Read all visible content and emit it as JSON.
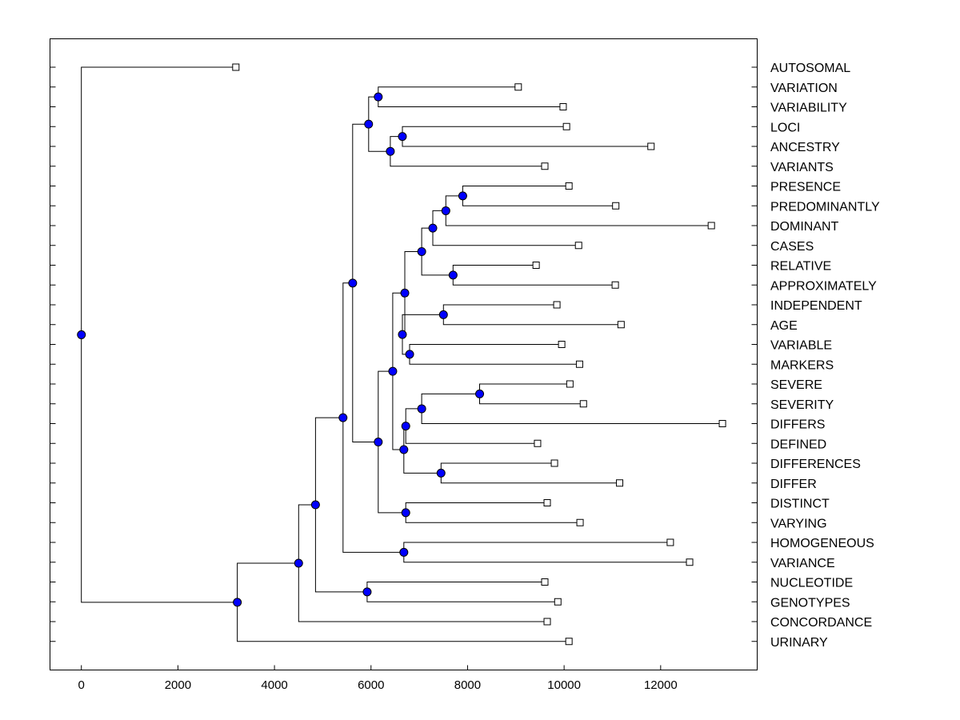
{
  "chart_data": {
    "type": "dendrogram",
    "title": "",
    "xlabel": "",
    "ylabel": "",
    "xlim": [
      -650,
      14000
    ],
    "xticks": [
      0,
      2000,
      4000,
      6000,
      8000,
      10000,
      12000
    ],
    "xtick_labels": [
      "0",
      "2000",
      "4000",
      "6000",
      "8000",
      "10000",
      "12000"
    ],
    "leaves": [
      {
        "name": "AUTOSOMAL",
        "value": 3200
      },
      {
        "name": "VARIATION",
        "value": 9050
      },
      {
        "name": "VARIABILITY",
        "value": 9980
      },
      {
        "name": "LOCI",
        "value": 10050
      },
      {
        "name": "ANCESTRY",
        "value": 11800
      },
      {
        "name": "VARIANTS",
        "value": 9600
      },
      {
        "name": "PRESENCE",
        "value": 10100
      },
      {
        "name": "PREDOMINANTLY",
        "value": 11070
      },
      {
        "name": "DOMINANT",
        "value": 13050
      },
      {
        "name": "CASES",
        "value": 10300
      },
      {
        "name": "RELATIVE",
        "value": 9420
      },
      {
        "name": "APPROXIMATELY",
        "value": 11060
      },
      {
        "name": "INDEPENDENT",
        "value": 9850
      },
      {
        "name": "AGE",
        "value": 11180
      },
      {
        "name": "VARIABLE",
        "value": 9950
      },
      {
        "name": "MARKERS",
        "value": 10320
      },
      {
        "name": "SEVERE",
        "value": 10120
      },
      {
        "name": "SEVERITY",
        "value": 10400
      },
      {
        "name": "DIFFERS",
        "value": 13280
      },
      {
        "name": "DEFINED",
        "value": 9450
      },
      {
        "name": "DIFFERENCES",
        "value": 9800
      },
      {
        "name": "DIFFER",
        "value": 11150
      },
      {
        "name": "DISTINCT",
        "value": 9650
      },
      {
        "name": "VARYING",
        "value": 10330
      },
      {
        "name": "HOMOGENEOUS",
        "value": 12200
      },
      {
        "name": "VARIANCE",
        "value": 12600
      },
      {
        "name": "NUCLEOTIDE",
        "value": 9600
      },
      {
        "name": "GENOTYPES",
        "value": 9870
      },
      {
        "name": "CONCORDANCE",
        "value": 9650
      },
      {
        "name": "URINARY",
        "value": 10100
      }
    ],
    "merges": [
      {
        "id": "m1",
        "value": 6150,
        "children": [
          "VARIATION",
          "VARIABILITY"
        ]
      },
      {
        "id": "m2",
        "value": 6650,
        "children": [
          "LOCI",
          "ANCESTRY"
        ]
      },
      {
        "id": "m3",
        "value": 6400,
        "children": [
          "m2",
          "VARIANTS"
        ]
      },
      {
        "id": "m4",
        "value": 5950,
        "children": [
          "m1",
          "m3"
        ]
      },
      {
        "id": "m5",
        "value": 7900,
        "children": [
          "PRESENCE",
          "PREDOMINANTLY"
        ]
      },
      {
        "id": "m6",
        "value": 7550,
        "children": [
          "m5",
          "DOMINANT"
        ]
      },
      {
        "id": "m7",
        "value": 7280,
        "children": [
          "m6",
          "CASES"
        ]
      },
      {
        "id": "m8",
        "value": 7700,
        "children": [
          "RELATIVE",
          "APPROXIMATELY"
        ]
      },
      {
        "id": "m9",
        "value": 7050,
        "children": [
          "m7",
          "m8"
        ]
      },
      {
        "id": "m10",
        "value": 7500,
        "children": [
          "INDEPENDENT",
          "AGE"
        ]
      },
      {
        "id": "m11",
        "value": 6800,
        "children": [
          "VARIABLE",
          "MARKERS"
        ]
      },
      {
        "id": "m12",
        "value": 6650,
        "children": [
          "m10",
          "m11"
        ]
      },
      {
        "id": "m13",
        "value": 6700,
        "children": [
          "m9",
          "m12"
        ]
      },
      {
        "id": "m14",
        "value": 8250,
        "children": [
          "SEVERE",
          "SEVERITY"
        ]
      },
      {
        "id": "m15",
        "value": 7050,
        "children": [
          "m14",
          "DIFFERS"
        ]
      },
      {
        "id": "m16",
        "value": 6720,
        "children": [
          "m15",
          "DEFINED"
        ]
      },
      {
        "id": "m17",
        "value": 7450,
        "children": [
          "DIFFERENCES",
          "DIFFER"
        ]
      },
      {
        "id": "m18",
        "value": 6680,
        "children": [
          "m16",
          "m17"
        ]
      },
      {
        "id": "m19",
        "value": 6450,
        "children": [
          "m13",
          "m18"
        ]
      },
      {
        "id": "m20",
        "value": 6720,
        "children": [
          "DISTINCT",
          "VARYING"
        ]
      },
      {
        "id": "m21",
        "value": 6150,
        "children": [
          "m19",
          "m20"
        ]
      },
      {
        "id": "m22",
        "value": 5620,
        "children": [
          "m4",
          "m21"
        ]
      },
      {
        "id": "m23",
        "value": 6680,
        "children": [
          "HOMOGENEOUS",
          "VARIANCE"
        ]
      },
      {
        "id": "m24",
        "value": 5420,
        "children": [
          "m22",
          "m23"
        ]
      },
      {
        "id": "m25",
        "value": 5920,
        "children": [
          "NUCLEOTIDE",
          "GENOTYPES"
        ]
      },
      {
        "id": "m26",
        "value": 4850,
        "children": [
          "m24",
          "m25"
        ]
      },
      {
        "id": "m27",
        "value": 4500,
        "children": [
          "m26",
          "CONCORDANCE"
        ]
      },
      {
        "id": "m28",
        "value": 3230,
        "children": [
          "m27",
          "URINARY"
        ]
      },
      {
        "id": "m29",
        "value": 0,
        "children": [
          "AUTOSOMAL",
          "m28"
        ]
      }
    ],
    "colors": {
      "node": "#0000ff",
      "line": "#000000",
      "leaf": "#ffffff"
    }
  }
}
